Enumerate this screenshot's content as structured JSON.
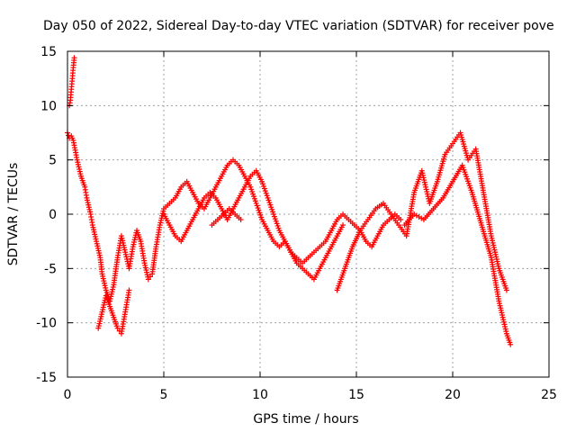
{
  "chart_data": {
    "type": "scatter",
    "title": "Day 050 of 2022, Sidereal Day-to-day VTEC variation (SDTVAR) for receiver pove",
    "xlabel": "GPS time / hours",
    "ylabel": "SDTVAR / TECUs",
    "xlim": [
      0,
      25
    ],
    "ylim": [
      -15,
      15
    ],
    "xticks": [
      "0",
      "5",
      "10",
      "15",
      "20",
      "25"
    ],
    "yticks": [
      "-15",
      "-10",
      "-5",
      "0",
      "5",
      "10",
      "15"
    ],
    "grid": true,
    "marker": "+",
    "color": "#ff0000",
    "series": [
      {
        "name": "s1",
        "x": [
          0.0,
          0.1,
          0.2,
          0.3,
          0.5,
          0.7,
          0.9,
          1.0,
          1.2,
          1.3,
          1.5,
          1.7,
          1.8,
          2.0,
          2.2,
          2.4,
          2.6,
          2.8,
          3.0,
          3.2,
          3.4,
          3.6,
          3.8,
          4.0,
          4.2,
          4.4,
          4.6,
          4.8,
          5.0,
          5.3,
          5.6,
          5.9,
          6.2,
          6.5,
          6.8,
          7.1,
          7.4,
          7.7,
          8.0,
          8.3,
          8.6,
          8.9,
          9.2,
          9.5,
          9.8,
          10.1,
          10.4,
          10.7,
          11.0,
          11.3,
          11.6,
          11.9,
          12.2,
          12.5,
          12.8,
          13.1,
          13.4,
          13.7,
          14.0,
          14.3,
          14.6,
          14.9,
          15.2,
          15.5,
          15.8,
          16.1,
          16.4,
          16.7,
          17.0,
          17.3
        ],
        "y": [
          7.5,
          7.0,
          7.2,
          6.8,
          5.0,
          3.5,
          2.5,
          1.5,
          0.0,
          -1.0,
          -2.5,
          -4.0,
          -5.5,
          -7.0,
          -8.0,
          -6.5,
          -4.0,
          -2.0,
          -3.5,
          -5.0,
          -3.0,
          -1.5,
          -2.5,
          -4.5,
          -6.0,
          -5.5,
          -3.0,
          -1.0,
          0.5,
          1.0,
          1.5,
          2.5,
          3.0,
          2.0,
          1.0,
          0.5,
          1.5,
          2.5,
          3.5,
          4.5,
          5.0,
          4.5,
          3.5,
          2.5,
          1.0,
          -0.5,
          -1.5,
          -2.5,
          -3.0,
          -2.5,
          -3.5,
          -4.0,
          -4.5,
          -4.0,
          -3.5,
          -3.0,
          -2.5,
          -1.5,
          -0.5,
          0.0,
          -0.5,
          -1.0,
          -1.5,
          -2.5,
          -3.0,
          -2.0,
          -1.0,
          -0.5,
          0.0,
          -0.5
        ]
      },
      {
        "name": "s2",
        "x": [
          0.1,
          0.15,
          0.2,
          0.25,
          0.3,
          0.35
        ],
        "y": [
          10.0,
          10.5,
          11.5,
          12.5,
          13.5,
          14.4
        ]
      },
      {
        "name": "s3",
        "x": [
          5.0,
          5.3,
          5.6,
          5.9,
          6.2,
          6.5,
          6.8,
          7.1,
          7.4,
          7.7,
          8.0,
          8.3,
          8.6,
          8.9,
          9.2,
          9.5,
          9.8,
          10.1,
          10.4,
          10.7,
          11.0,
          11.3,
          11.6,
          11.9,
          12.2,
          12.5,
          12.8,
          13.1,
          13.4,
          13.7,
          14.0,
          14.3
        ],
        "y": [
          0.0,
          -1.0,
          -2.0,
          -2.5,
          -1.5,
          -0.5,
          0.5,
          1.5,
          2.0,
          1.5,
          0.5,
          -0.5,
          0.5,
          1.5,
          2.5,
          3.5,
          4.0,
          3.0,
          1.5,
          0.0,
          -1.5,
          -2.5,
          -3.5,
          -4.5,
          -5.0,
          -5.5,
          -6.0,
          -5.0,
          -4.0,
          -3.0,
          -2.0,
          -1.0
        ]
      },
      {
        "name": "s4",
        "x": [
          14.0,
          14.4,
          14.8,
          15.2,
          15.6,
          16.0,
          16.4,
          16.8,
          17.2,
          17.6,
          18.0,
          18.4,
          18.8,
          19.2,
          19.6,
          20.0,
          20.4,
          20.8,
          21.2,
          21.6,
          22.0,
          22.4,
          22.8
        ],
        "y": [
          -7.0,
          -5.0,
          -3.0,
          -1.5,
          -0.5,
          0.5,
          1.0,
          0.0,
          -1.0,
          -2.0,
          2.0,
          4.0,
          1.0,
          3.0,
          5.5,
          6.5,
          7.5,
          5.0,
          6.0,
          2.0,
          -2.0,
          -5.0,
          -7.0
        ]
      },
      {
        "name": "s5",
        "x": [
          17.5,
          18.0,
          18.5,
          19.0,
          19.5,
          20.0,
          20.5,
          21.0,
          21.5,
          22.0,
          22.4,
          22.8,
          23.0
        ],
        "y": [
          -1.0,
          0.0,
          -0.5,
          0.5,
          1.5,
          3.0,
          4.5,
          2.0,
          -1.0,
          -4.0,
          -8.0,
          -11.0,
          -12.0
        ]
      },
      {
        "name": "s6",
        "x": [
          1.6,
          1.8,
          2.0,
          2.2,
          2.4,
          2.6,
          2.8,
          3.0,
          3.2
        ],
        "y": [
          -10.5,
          -9.0,
          -7.5,
          -8.5,
          -9.5,
          -10.5,
          -11.0,
          -9.0,
          -7.0
        ]
      },
      {
        "name": "s7",
        "x": [
          7.5,
          7.8,
          8.1,
          8.4,
          8.7,
          9.0
        ],
        "y": [
          -1.0,
          -0.5,
          0.0,
          0.5,
          0.0,
          -0.5
        ]
      }
    ]
  }
}
